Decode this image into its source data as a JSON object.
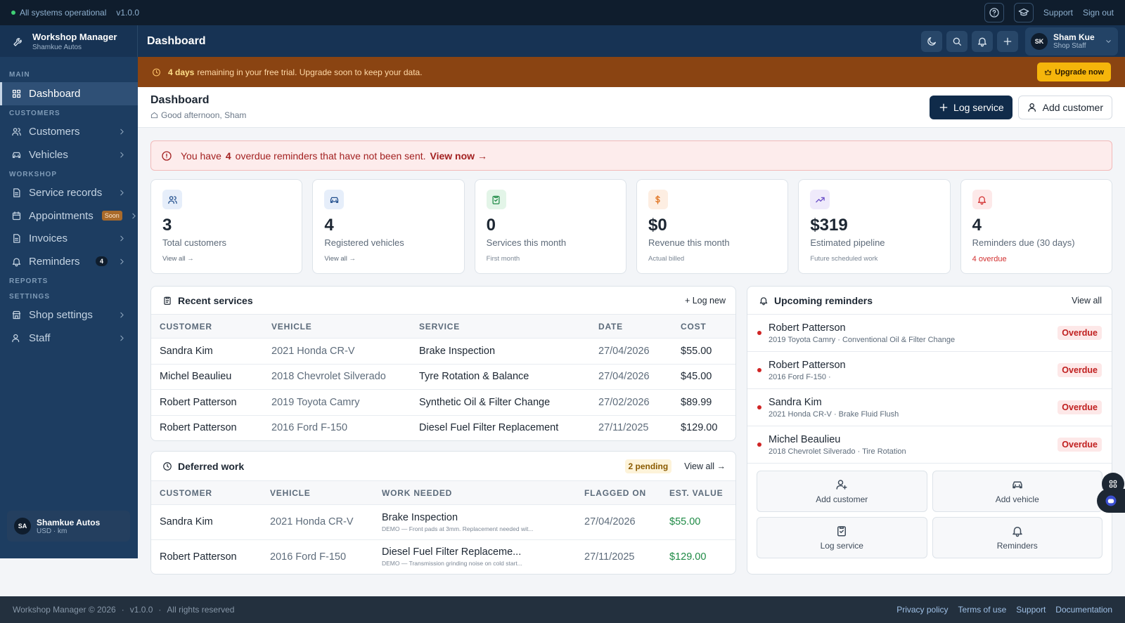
{
  "status_bar": {
    "status": "All systems operational",
    "version": "v1.0.0",
    "links": [
      "Support",
      "Sign out"
    ]
  },
  "brand": {
    "title": "Workshop Manager",
    "subtitle": "Shamkue Autos"
  },
  "header": {
    "title": "Dashboard",
    "user": {
      "initials": "SK",
      "name": "Sham Kue",
      "role": "Shop Staff"
    }
  },
  "sidebar": {
    "sections": [
      {
        "label": "MAIN",
        "items": [
          {
            "label": "Dashboard"
          }
        ]
      },
      {
        "label": "CUSTOMERS",
        "items": [
          {
            "label": "Customers"
          },
          {
            "label": "Vehicles"
          }
        ]
      },
      {
        "label": "WORKSHOP",
        "items": [
          {
            "label": "Service records"
          },
          {
            "label": "Appointments",
            "badge": "Soon"
          },
          {
            "label": "Invoices"
          },
          {
            "label": "Reminders",
            "badge": "4"
          }
        ]
      },
      {
        "label": "REPORTS",
        "items": []
      },
      {
        "label": "SETTINGS",
        "items": [
          {
            "label": "Shop settings"
          },
          {
            "label": "Staff"
          }
        ]
      }
    ],
    "account": {
      "initials": "SA",
      "name": "Shamkue Autos",
      "meta": "USD · km"
    }
  },
  "trial_banner": {
    "highlight": "4 days",
    "text": "remaining in your free trial. Upgrade soon to keep your data.",
    "button": "Upgrade now"
  },
  "page_header": {
    "title": "Dashboard",
    "greeting": "Good afternoon, Sham",
    "actions": [
      "Log service",
      "Add customer"
    ]
  },
  "alert": {
    "prefix": "You have",
    "count": "4",
    "suffix": "overdue reminders that have not been sent.",
    "link": "View now →"
  },
  "stats": [
    {
      "value": "3",
      "label": "Total customers",
      "sub": "View all →"
    },
    {
      "value": "4",
      "label": "Registered vehicles",
      "sub": "View all →"
    },
    {
      "value": "0",
      "label": "Services this month",
      "sub": "First month"
    },
    {
      "value": "$0",
      "label": "Revenue this month",
      "sub": "Actual billed"
    },
    {
      "value": "$319",
      "label": "Estimated pipeline",
      "sub": "Future scheduled work"
    },
    {
      "value": "4",
      "label": "Reminders due (30 days)",
      "sub": "4 overdue"
    }
  ],
  "recent_services": {
    "title": "Recent services",
    "action": "+ Log new",
    "columns": [
      "CUSTOMER",
      "VEHICLE",
      "SERVICE",
      "DATE",
      "COST"
    ],
    "rows": [
      [
        "Sandra Kim",
        "2021 Honda CR-V",
        "Brake Inspection",
        "27/04/2026",
        "$55.00"
      ],
      [
        "Michel Beaulieu",
        "2018 Chevrolet Silverado",
        "Tyre Rotation & Balance",
        "27/04/2026",
        "$45.00"
      ],
      [
        "Robert Patterson",
        "2019 Toyota Camry",
        "Synthetic Oil & Filter Change",
        "27/02/2026",
        "$89.99"
      ],
      [
        "Robert Patterson",
        "2016 Ford F-150",
        "Diesel Fuel Filter Replacement",
        "27/11/2025",
        "$129.00"
      ]
    ]
  },
  "deferred_work": {
    "title": "Deferred work",
    "badge": "2 pending",
    "action": "View all →",
    "columns": [
      "CUSTOMER",
      "VEHICLE",
      "WORK NEEDED",
      "FLAGGED ON",
      "EST. VALUE"
    ],
    "rows": [
      {
        "customer": "Sandra Kim",
        "vehicle": "2021 Honda CR-V",
        "work": "Brake Inspection",
        "note": "DEMO — Front pads at 3mm. Replacement needed wit...",
        "flagged": "27/04/2026",
        "value": "$55.00"
      },
      {
        "customer": "Robert Patterson",
        "vehicle": "2016 Ford F-150",
        "work": "Diesel Fuel Filter Replaceme...",
        "note": "DEMO — Transmission grinding noise on cold start...",
        "flagged": "27/11/2025",
        "value": "$129.00"
      }
    ]
  },
  "reminders": {
    "title": "Upcoming reminders",
    "action": "View all",
    "items": [
      {
        "name": "Robert Patterson",
        "detail": "2019 Toyota Camry · Conventional Oil & Filter Change",
        "status": "Overdue"
      },
      {
        "name": "Robert Patterson",
        "detail": "2016 Ford F-150 ·",
        "status": "Overdue"
      },
      {
        "name": "Sandra Kim",
        "detail": "2021 Honda CR-V · Brake Fluid Flush",
        "status": "Overdue"
      },
      {
        "name": "Michel Beaulieu",
        "detail": "2018 Chevrolet Silverado · Tire Rotation",
        "status": "Overdue"
      }
    ]
  },
  "quick_actions": [
    "Add customer",
    "Add vehicle",
    "Log service",
    "Reminders"
  ],
  "footer": {
    "left": [
      "Workshop Manager © 2026",
      "v1.0.0",
      "All rights reserved"
    ],
    "links": [
      "Privacy policy",
      "Terms of use",
      "Support",
      "Documentation"
    ]
  }
}
